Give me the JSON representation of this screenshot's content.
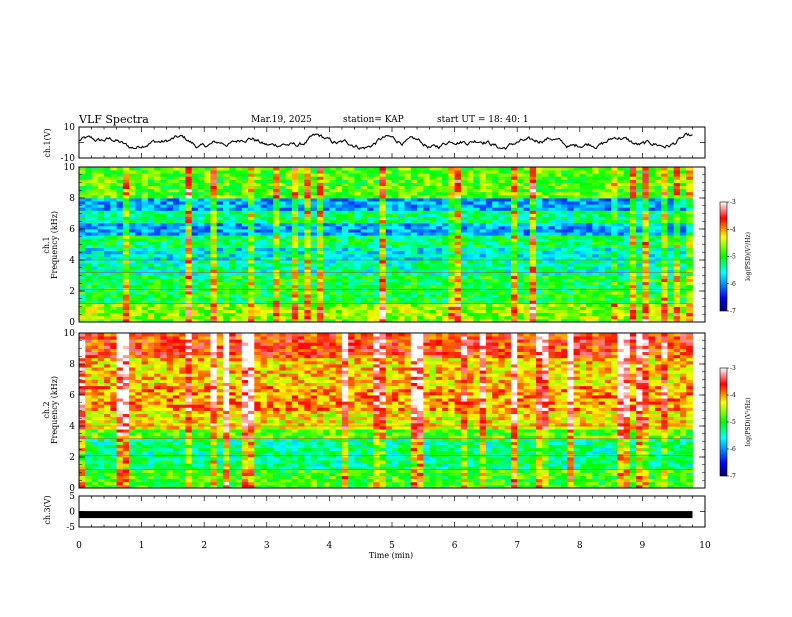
{
  "header": {
    "title": "VLF Spectra",
    "date": "Mar.19, 2025",
    "station": "station= KAP",
    "start": "start  UT  =   18: 40: 1"
  },
  "chart_data": [
    {
      "type": "line",
      "panel": "ch1-waveform",
      "ylabel": "ch.1(V)",
      "ylim": [
        -10,
        10
      ],
      "yticks": [
        "10",
        "-10"
      ],
      "xlim": [
        0,
        10
      ],
      "description_values_note": "noisy waveform oscillating roughly between -5 and 5 V",
      "y_range_observed": [
        -5,
        5
      ]
    },
    {
      "type": "heatmap",
      "panel": "ch1-spectrogram",
      "ylabel": "ch.1\nFrequency  (kHz)",
      "ylabel_lines": [
        "ch.1",
        "Frequency  (kHz)"
      ],
      "ylim": [
        0,
        10
      ],
      "yticks": [
        "0",
        "2",
        "4",
        "6",
        "8",
        "10"
      ],
      "xlim": [
        0,
        9.8
      ],
      "colorbar": {
        "label": "log(PSD)(V²/Hz)",
        "ticks": [
          "-3",
          "-4",
          "-5",
          "-6",
          "-7"
        ],
        "range": [
          -7,
          -3
        ],
        "colors": [
          "#000066",
          "#0000ff",
          "#00ffff",
          "#00ff00",
          "#ffff00",
          "#ff0000",
          "#ffffff"
        ]
      },
      "bands": [
        {
          "from": 0,
          "to": 1.2,
          "level": -4.6
        },
        {
          "from": 1.2,
          "to": 3.0,
          "level": -5.1
        },
        {
          "from": 3.0,
          "to": 4.0,
          "level": -5.4
        },
        {
          "from": 4.0,
          "to": 4.8,
          "level": -5.6
        },
        {
          "from": 4.8,
          "to": 5.6,
          "level": -5.2
        },
        {
          "from": 5.6,
          "to": 6.4,
          "level": -5.9
        },
        {
          "from": 6.4,
          "to": 7.2,
          "level": -5.3
        },
        {
          "from": 7.2,
          "to": 8.0,
          "level": -5.9
        },
        {
          "from": 8.0,
          "to": 10.0,
          "level": -4.8
        }
      ]
    },
    {
      "type": "heatmap",
      "panel": "ch2-spectrogram",
      "ylabel_lines": [
        "ch.2",
        "Frequency  (kHz)"
      ],
      "ylim": [
        0,
        10
      ],
      "yticks": [
        "0",
        "2",
        "4",
        "6",
        "8",
        "10"
      ],
      "xlim": [
        0,
        9.8
      ],
      "colorbar": {
        "label": "log(PSD)(V²/Hz)",
        "ticks": [
          "-3",
          "-4",
          "-5",
          "-6",
          "-7"
        ],
        "range": [
          -7,
          -3
        ]
      },
      "bands": [
        {
          "from": 0,
          "to": 1.2,
          "level": -4.9
        },
        {
          "from": 1.2,
          "to": 3.2,
          "level": -5.3
        },
        {
          "from": 3.2,
          "to": 3.8,
          "level": -4.8
        },
        {
          "from": 3.8,
          "to": 5.0,
          "level": -4.3
        },
        {
          "from": 5.0,
          "to": 6.6,
          "level": -4.0
        },
        {
          "from": 6.6,
          "to": 8.4,
          "level": -4.2
        },
        {
          "from": 8.4,
          "to": 10.0,
          "level": -3.7
        }
      ]
    },
    {
      "type": "line",
      "panel": "ch3-waveform",
      "ylabel": "ch.3(V)",
      "ylim": [
        -5,
        5
      ],
      "yticks": [
        "5",
        "0",
        "-5"
      ],
      "level": -1,
      "xlim": [
        0,
        9.8
      ]
    }
  ],
  "xaxis": {
    "label": "Time  (min)",
    "ticks": [
      "0",
      "1",
      "2",
      "3",
      "4",
      "5",
      "6",
      "7",
      "8",
      "9",
      "10"
    ],
    "range": [
      0,
      10
    ]
  }
}
